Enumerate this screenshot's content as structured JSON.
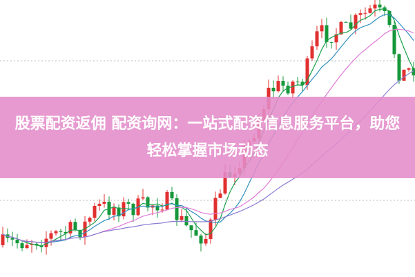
{
  "banner": {
    "title": "股票配资返佣 配资询网：一站式配资信息服务平台，助您轻松掌握市场动态"
  }
}
